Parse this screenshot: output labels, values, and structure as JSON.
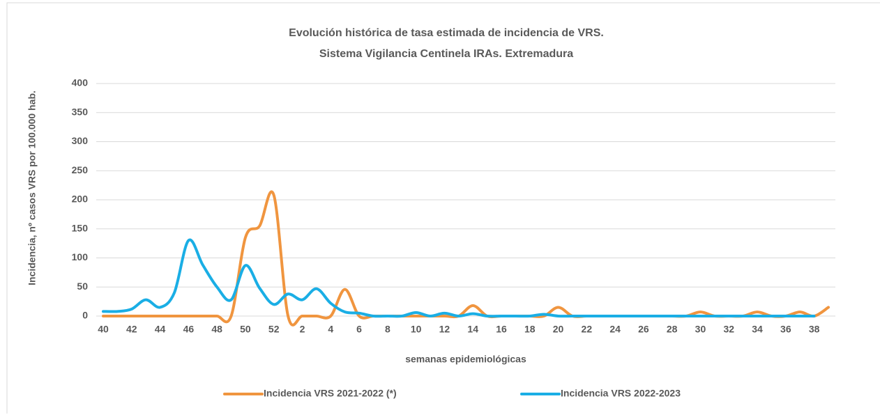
{
  "chart_data": {
    "type": "line",
    "title": [
      "Evolución histórica de tasa estimada de  incidencia de VRS.",
      "Sistema Vigilancia Centinela IRAs. Extremadura"
    ],
    "x_label": "semanas epidemiológicas",
    "y_label": "Incidencia, nº casos VRS  por 100.000 hab.",
    "categories": [
      40,
      null,
      42,
      null,
      44,
      null,
      46,
      null,
      48,
      null,
      50,
      null,
      52,
      null,
      2,
      null,
      4,
      null,
      6,
      null,
      8,
      null,
      10,
      null,
      12,
      null,
      14,
      null,
      16,
      null,
      18,
      null,
      20,
      null,
      22,
      null,
      24,
      null,
      26,
      null,
      28,
      null,
      30,
      null,
      32,
      null,
      34,
      null,
      36,
      null,
      38,
      null
    ],
    "series": [
      {
        "name": "Incidencia VRS 2021-2022 (*)",
        "color": "#f0953f",
        "values": [
          0,
          0,
          0,
          0,
          0,
          0,
          0,
          0,
          0,
          0,
          135,
          155,
          208,
          0,
          0,
          0,
          0,
          46,
          0,
          0,
          0,
          0,
          0,
          0,
          0,
          0,
          18,
          0,
          0,
          0,
          0,
          0,
          15,
          0,
          0,
          0,
          0,
          0,
          0,
          0,
          0,
          0,
          7,
          0,
          0,
          0,
          7,
          0,
          0,
          7,
          0,
          15
        ]
      },
      {
        "name": "Incidencia VRS 2022-2023",
        "color": "#1aaee5",
        "values": [
          8,
          8,
          12,
          28,
          15,
          40,
          130,
          88,
          50,
          28,
          87,
          48,
          20,
          38,
          28,
          47,
          22,
          7,
          5,
          0,
          0,
          0,
          6,
          0,
          5,
          0,
          4,
          0,
          0,
          0,
          0,
          3,
          0,
          0,
          0,
          0,
          0,
          0,
          0,
          0,
          0,
          0,
          0,
          0,
          0,
          0,
          0,
          0,
          0,
          0,
          0,
          null
        ]
      }
    ],
    "ylim": [
      0,
      400
    ],
    "yticks": [
      0,
      50,
      100,
      150,
      200,
      250,
      300,
      350,
      400
    ],
    "grid": true,
    "legend": "bottom"
  }
}
